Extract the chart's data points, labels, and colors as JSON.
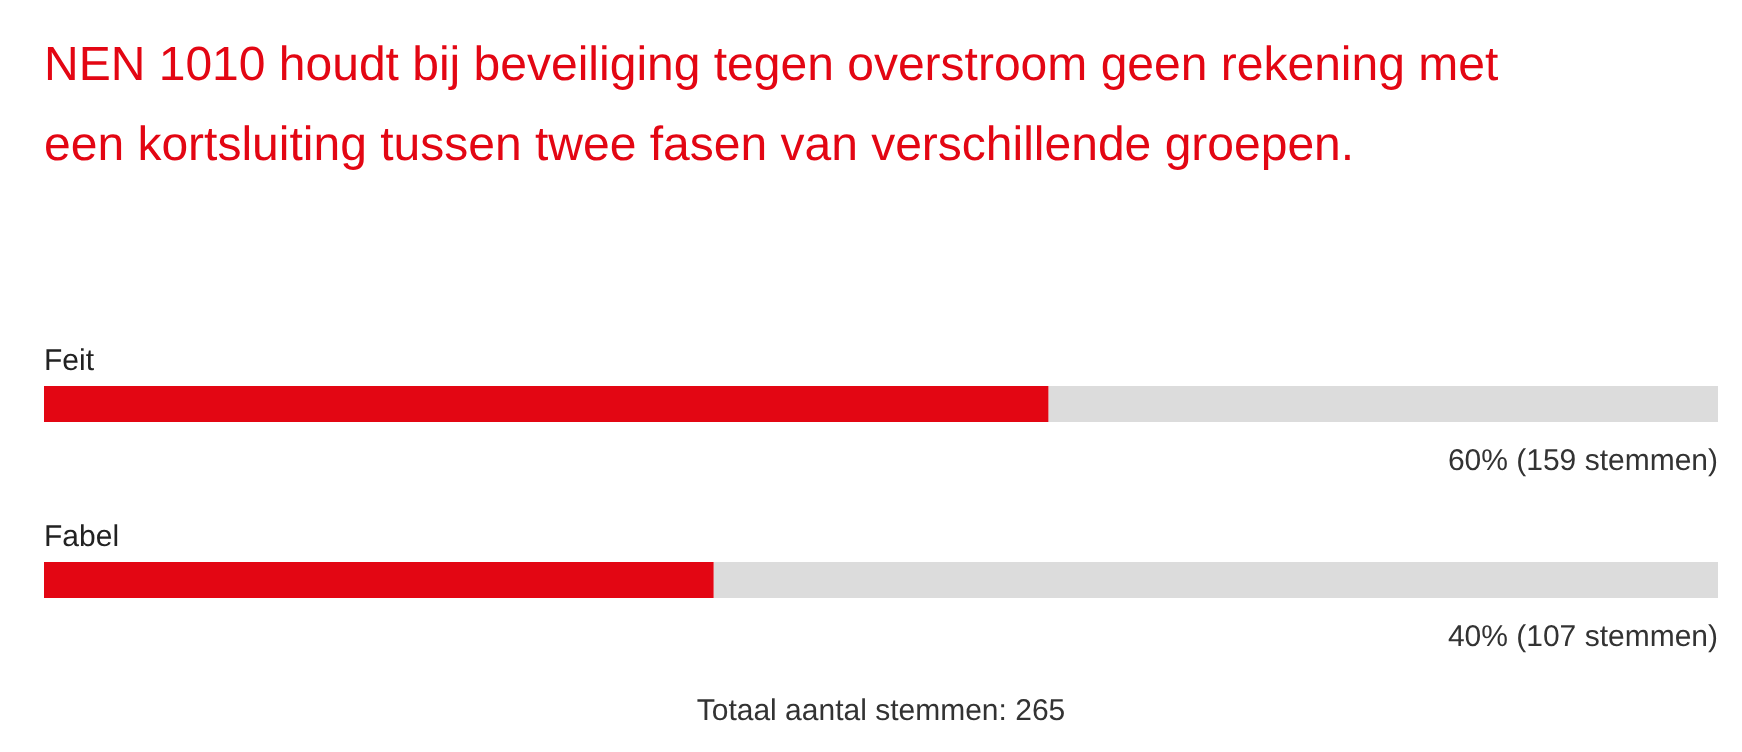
{
  "chart_data": {
    "type": "bar",
    "orientation": "horizontal",
    "title": "NEN 1010 houdt bij beveiliging tegen overstroom geen rekening met een kortsluiting tussen twee fasen van verschillende groepen.",
    "categories": [
      "Feit",
      "Fabel"
    ],
    "values": [
      60,
      40
    ],
    "color": "#e30613",
    "xlim": [
      0,
      100
    ],
    "value_labels": [
      "60% (159 stemmen)",
      "40% (107 stemmen)"
    ],
    "annotations": [
      "Totaal aantal stemmen: 265"
    ]
  }
}
